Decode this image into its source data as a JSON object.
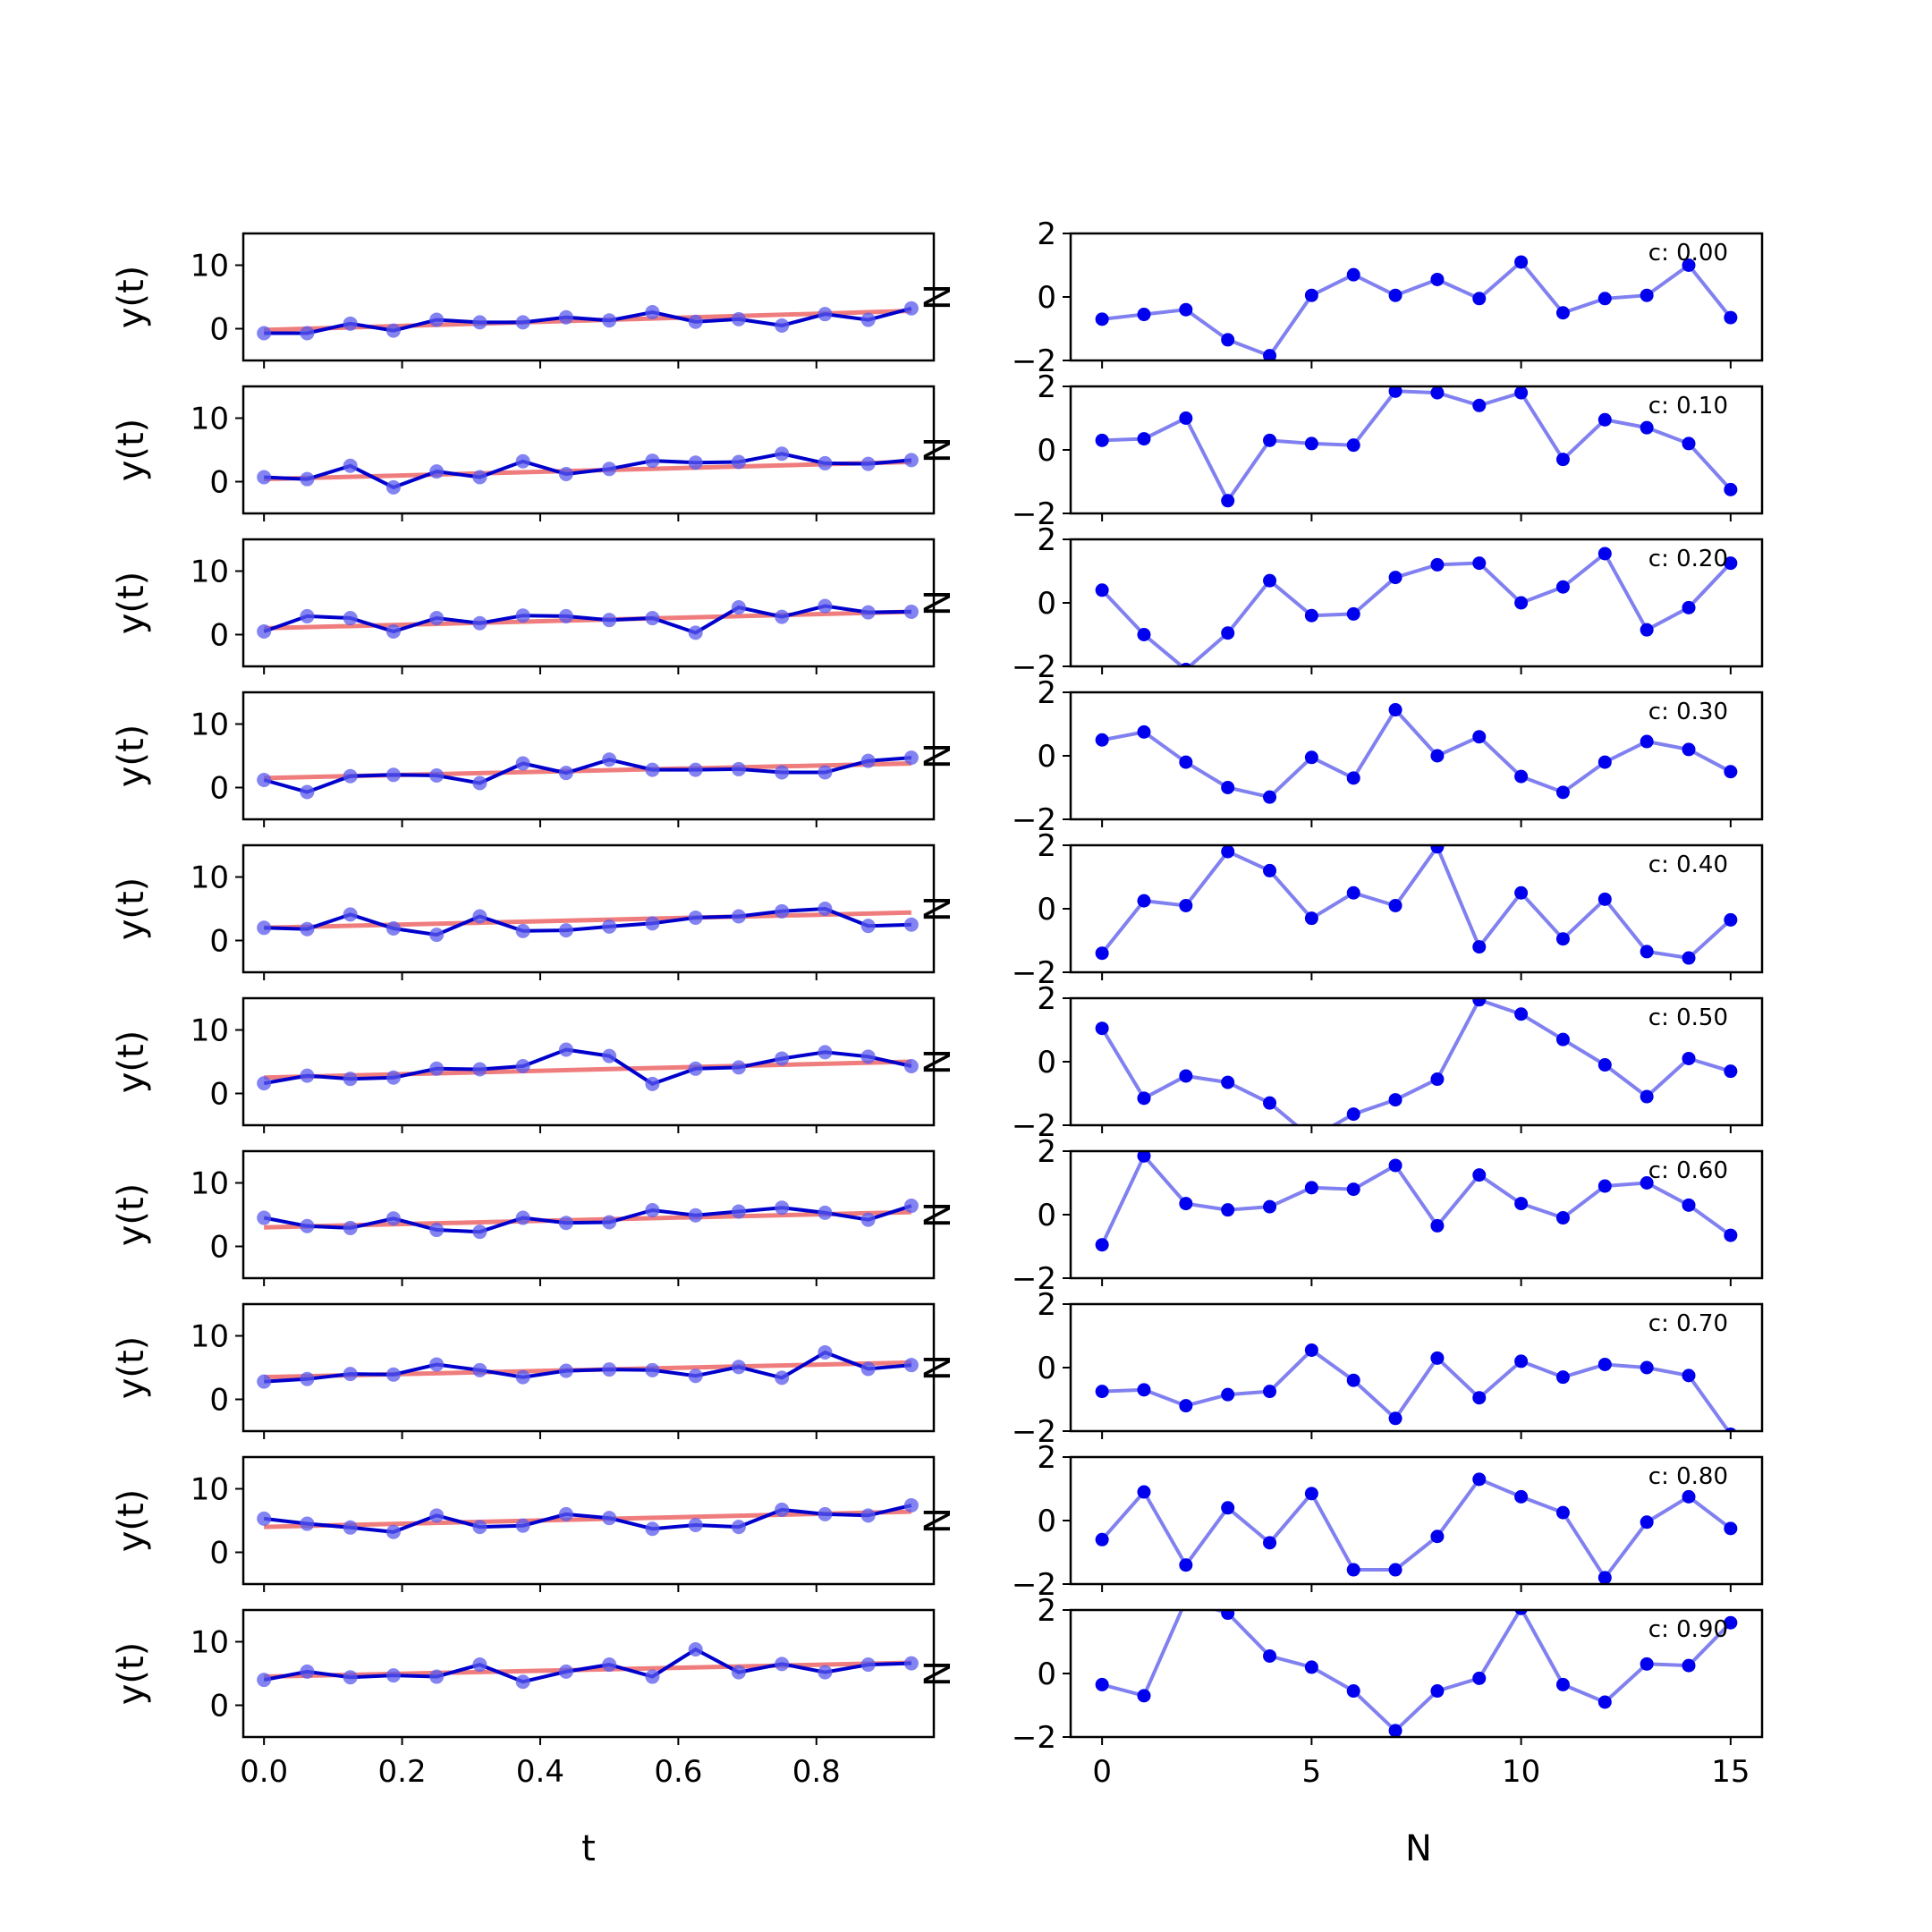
{
  "figure": {
    "left_xlabel": "t",
    "right_xlabel": "N"
  },
  "chart_data": [
    {
      "panel": "left",
      "type": "line",
      "ylabel": "y(t)",
      "ylim": [
        -5,
        15
      ],
      "yticks": [
        0,
        10
      ],
      "xlim": [
        -0.03,
        0.97
      ],
      "xticks": [
        0.0,
        0.2,
        0.4,
        0.6,
        0.8
      ],
      "xticklabels": [
        "0.0",
        "0.2",
        "0.4",
        "0.6",
        "0.8"
      ],
      "x": [
        0,
        0.0625,
        0.125,
        0.1875,
        0.25,
        0.3125,
        0.375,
        0.4375,
        0.5,
        0.5625,
        0.625,
        0.6875,
        0.75,
        0.8125,
        0.875,
        0.9375
      ],
      "series": [
        {
          "values": [
            [
              -0.7,
              -0.7,
              0.8,
              -0.3,
              1.4,
              1.0,
              1.0,
              1.8,
              1.3,
              2.6,
              1.1,
              1.5,
              0.5,
              2.3,
              1.4,
              3.2
            ],
            [
              0.7,
              0.4,
              2.5,
              -0.9,
              1.6,
              0.7,
              3.2,
              1.2,
              2.0,
              3.3,
              3.0,
              3.1,
              4.4,
              2.9,
              2.8,
              3.4
            ],
            [
              0.5,
              2.9,
              2.6,
              0.5,
              2.6,
              1.8,
              3.0,
              2.9,
              2.3,
              2.6,
              0.3,
              4.3,
              2.8,
              4.5,
              3.5,
              3.6
            ],
            [
              1.2,
              -0.7,
              1.8,
              2.0,
              1.9,
              0.7,
              3.8,
              2.3,
              4.4,
              2.8,
              2.8,
              2.9,
              2.4,
              2.4,
              4.2,
              4.7
            ],
            [
              2.0,
              1.8,
              4.1,
              1.9,
              0.9,
              3.8,
              1.5,
              1.6,
              2.2,
              2.7,
              3.6,
              3.8,
              4.6,
              5.0,
              2.3,
              2.5
            ],
            [
              1.6,
              2.8,
              2.3,
              2.5,
              3.9,
              3.8,
              4.3,
              6.9,
              5.9,
              1.5,
              3.9,
              4.1,
              5.5,
              6.5,
              5.8,
              4.3
            ],
            [
              4.5,
              3.2,
              2.9,
              4.4,
              2.6,
              2.3,
              4.5,
              3.7,
              3.8,
              5.7,
              4.9,
              5.5,
              6.1,
              5.3,
              4.2,
              6.4
            ],
            [
              2.8,
              3.2,
              4.0,
              3.9,
              5.5,
              4.6,
              3.5,
              4.5,
              4.7,
              4.6,
              3.7,
              5.1,
              3.4,
              7.4,
              4.8,
              5.4
            ],
            [
              5.3,
              4.5,
              3.9,
              3.2,
              5.8,
              4.0,
              4.2,
              6.0,
              5.4,
              3.7,
              4.3,
              4.0,
              6.7,
              6.0,
              5.8,
              7.4
            ],
            [
              4.0,
              5.3,
              4.4,
              4.7,
              4.5,
              6.4,
              3.7,
              5.3,
              6.4,
              4.5,
              8.8,
              5.2,
              6.5,
              5.2,
              6.4,
              6.6
            ]
          ]
        }
      ],
      "trend_lines": [
        [
          -0.2,
          2.8
        ],
        [
          0.4,
          3.1
        ],
        [
          1.0,
          3.6
        ],
        [
          1.5,
          3.8
        ],
        [
          2.0,
          4.4
        ],
        [
          2.5,
          5.0
        ],
        [
          3.0,
          5.4
        ],
        [
          3.5,
          5.8
        ],
        [
          4.0,
          6.4
        ],
        [
          4.5,
          6.7
        ]
      ],
      "colors": {
        "line": "#0000cc",
        "markers": "#5a5aee",
        "trend": "#f07d7d"
      }
    },
    {
      "panel": "right",
      "type": "line",
      "ylabel": "N",
      "ylim": [
        -2,
        2
      ],
      "yticks": [
        -2,
        0,
        2
      ],
      "xlim": [
        -0.75,
        15.75
      ],
      "xticks": [
        0,
        5,
        10,
        15
      ],
      "x": [
        0,
        1,
        2,
        3,
        4,
        5,
        6,
        7,
        8,
        9,
        10,
        11,
        12,
        13,
        14,
        15
      ],
      "annotations": [
        "c: 0.00",
        "c: 0.10",
        "c: 0.20",
        "c: 0.30",
        "c: 0.40",
        "c: 0.50",
        "c: 0.60",
        "c: 0.70",
        "c: 0.80",
        "c: 0.90"
      ],
      "series": [
        {
          "values": [
            [
              -0.7,
              -0.55,
              -0.4,
              -1.35,
              -1.85,
              0.05,
              0.7,
              0.05,
              0.55,
              -0.05,
              1.1,
              -0.5,
              -0.05,
              0.05,
              1.0,
              -0.65
            ],
            [
              0.3,
              0.35,
              1.0,
              -1.6,
              0.3,
              0.2,
              0.15,
              1.85,
              1.8,
              1.4,
              1.8,
              -0.3,
              0.95,
              0.7,
              0.2,
              -1.25
            ],
            [
              0.4,
              -1.0,
              -2.1,
              -0.95,
              0.7,
              -0.4,
              -0.35,
              0.8,
              1.2,
              1.25,
              0.0,
              0.5,
              1.55,
              -0.85,
              -0.15,
              1.25
            ],
            [
              0.5,
              0.75,
              -0.2,
              -1.0,
              -1.3,
              -0.05,
              -0.7,
              1.45,
              0.0,
              0.6,
              -0.65,
              -1.15,
              -0.2,
              0.45,
              0.2,
              -0.5
            ],
            [
              -1.4,
              0.25,
              0.1,
              1.8,
              1.2,
              -0.3,
              0.5,
              0.1,
              1.95,
              -1.2,
              0.5,
              -0.95,
              0.3,
              -1.35,
              -1.55,
              -0.35
            ],
            [
              1.05,
              -1.15,
              -0.45,
              -0.65,
              -1.3,
              -2.4,
              -1.65,
              -1.2,
              -0.55,
              1.95,
              1.5,
              0.7,
              -0.1,
              -1.1,
              0.1,
              -0.3
            ],
            [
              -0.95,
              1.85,
              0.35,
              0.15,
              0.25,
              0.85,
              0.8,
              1.55,
              -0.35,
              1.25,
              0.35,
              -0.1,
              0.9,
              1.0,
              0.3,
              -0.65
            ],
            [
              -0.75,
              -0.7,
              -1.2,
              -0.85,
              -0.75,
              0.55,
              -0.4,
              -1.6,
              0.3,
              -0.95,
              0.2,
              -0.3,
              0.1,
              0.0,
              -0.25,
              -2.1
            ],
            [
              -0.6,
              0.9,
              -1.4,
              0.4,
              -0.7,
              0.85,
              -1.55,
              -1.55,
              -0.5,
              1.3,
              0.75,
              0.25,
              -1.8,
              -0.05,
              0.75,
              -0.25
            ],
            [
              -0.35,
              -0.7,
              2.3,
              1.9,
              0.55,
              0.2,
              -0.55,
              -1.8,
              -0.55,
              -0.15,
              2.05,
              -0.35,
              -0.9,
              0.3,
              0.25,
              1.6
            ]
          ]
        }
      ],
      "colors": {
        "line": "#8080f0",
        "markers": "#0000ee"
      }
    }
  ]
}
